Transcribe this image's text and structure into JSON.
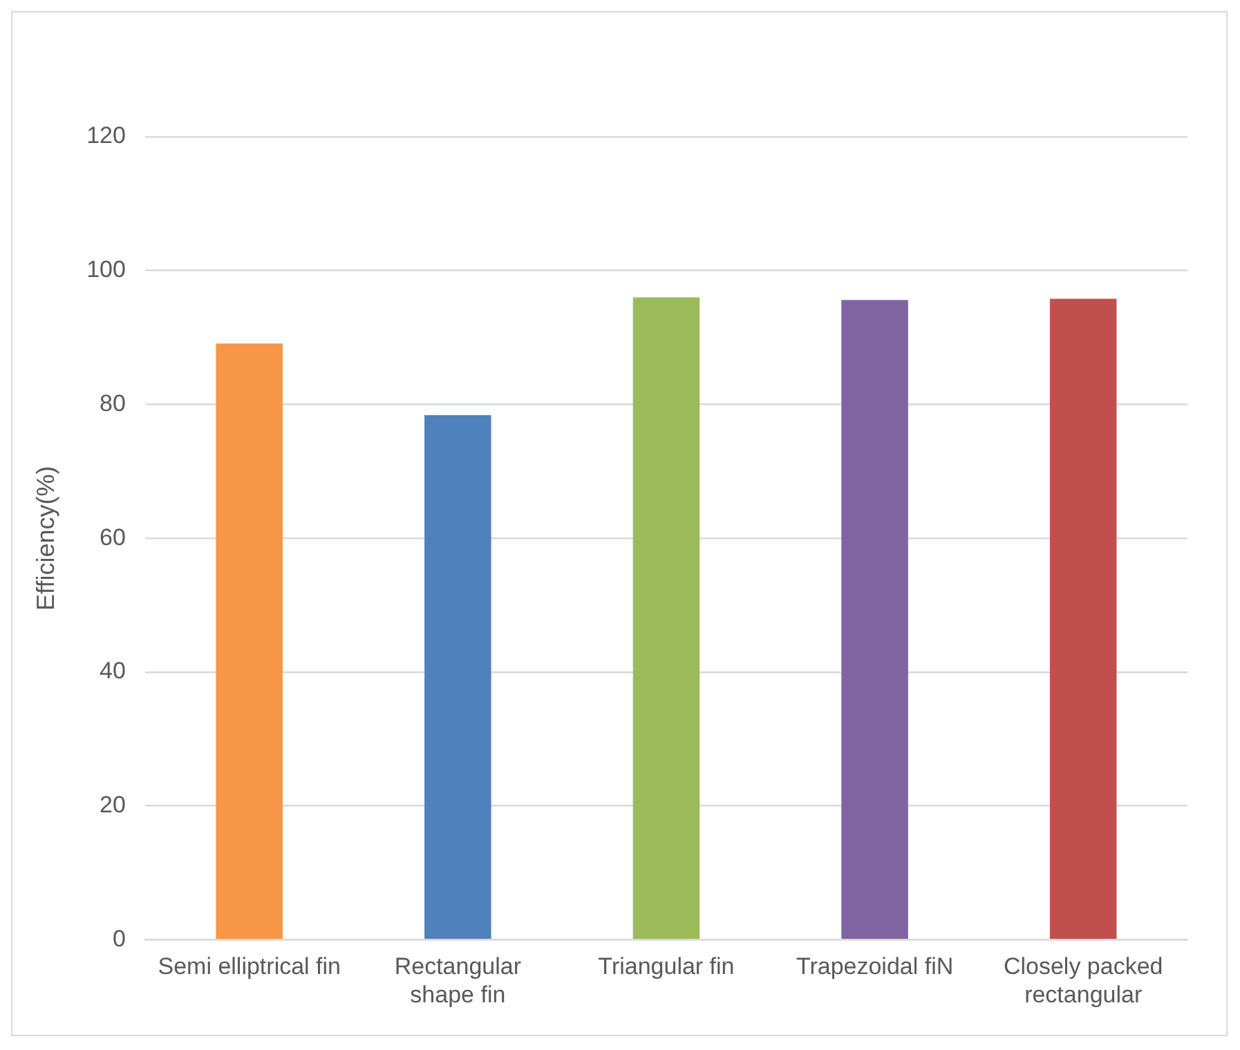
{
  "chart_data": {
    "type": "bar",
    "ylabel": "Efficiency(%)",
    "categories": [
      "Semi elliptrical fin",
      "Rectangular shape fin",
      "Triangular fin",
      "Trapezoidal fiN",
      "Closely packed rectangular"
    ],
    "values": [
      89.1,
      78.4,
      96.0,
      95.6,
      95.8
    ],
    "colors": [
      "#f79646",
      "#4f81bd",
      "#9bbb59",
      "#8064a2",
      "#c0504d"
    ],
    "ylim": [
      0,
      120
    ],
    "yticks": [
      0,
      20,
      40,
      60,
      80,
      100,
      120
    ],
    "grid": "y"
  }
}
